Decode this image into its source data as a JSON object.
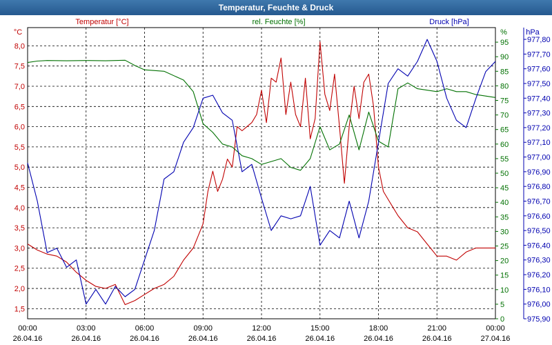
{
  "window": {
    "title": "Temperatur, Feuchte & Druck"
  },
  "colors": {
    "temperature": "#c00000",
    "humidity": "#007000",
    "pressure": "#0000b0",
    "grid": "#000000",
    "title_bg": "#2e65a0"
  },
  "chart_data": {
    "type": "line",
    "title": "Temperatur, Feuchte & Druck",
    "grid": true,
    "x_axis": {
      "range": [
        "26.04.16 00:00",
        "27.04.16 00:00"
      ],
      "ticks": [
        {
          "time": "00:00",
          "date": "26.04.16"
        },
        {
          "time": "03:00",
          "date": "26.04.16"
        },
        {
          "time": "06:00",
          "date": "26.04.16"
        },
        {
          "time": "09:00",
          "date": "26.04.16"
        },
        {
          "time": "12:00",
          "date": "26.04.16"
        },
        {
          "time": "15:00",
          "date": "26.04.16"
        },
        {
          "time": "18:00",
          "date": "26.04.16"
        },
        {
          "time": "21:00",
          "date": "26.04.16"
        },
        {
          "time": "00:00",
          "date": "27.04.16"
        }
      ]
    },
    "axes": {
      "left": {
        "unit": "°C",
        "range": [
          1.25,
          8.45
        ],
        "ticks": [
          "1,5",
          "2,0",
          "2,5",
          "3,0",
          "3,5",
          "4,0",
          "4,5",
          "5,0",
          "5,5",
          "6,0",
          "6,5",
          "7,0",
          "7,5",
          "8,0"
        ]
      },
      "middle": {
        "unit": "%",
        "range": [
          0,
          100
        ],
        "ticks": [
          "0",
          "5",
          "10",
          "15",
          "20",
          "25",
          "30",
          "35",
          "40",
          "45",
          "50",
          "55",
          "60",
          "65",
          "70",
          "75",
          "80",
          "85",
          "90",
          "95"
        ]
      },
      "right": {
        "unit": "hPa",
        "range": [
          975.9,
          977.88
        ],
        "ticks": [
          "975,90",
          "976,00",
          "976,10",
          "976,20",
          "976,30",
          "976,40",
          "976,50",
          "976,60",
          "976,70",
          "976,80",
          "976,90",
          "977,00",
          "977,10",
          "977,20",
          "977,30",
          "977,40",
          "977,50",
          "977,60",
          "977,70",
          "977,80"
        ]
      }
    },
    "series": [
      {
        "name": "Temperatur [°C]",
        "axis": "left",
        "color": "#c00000",
        "x_hours": [
          0,
          0.5,
          1,
          1.5,
          2,
          2.5,
          3,
          3.5,
          4,
          4.5,
          5,
          5.5,
          6,
          6.5,
          7,
          7.5,
          8,
          8.5,
          9,
          9.25,
          9.5,
          9.75,
          10,
          10.25,
          10.5,
          10.75,
          11,
          11.25,
          11.5,
          11.75,
          12,
          12.25,
          12.5,
          12.75,
          13,
          13.25,
          13.5,
          13.75,
          14,
          14.25,
          14.5,
          14.75,
          15,
          15.25,
          15.5,
          15.75,
          16,
          16.25,
          16.5,
          16.75,
          17,
          17.25,
          17.5,
          17.75,
          18,
          18.25,
          18.5,
          18.75,
          19,
          19.5,
          20,
          20.5,
          21,
          21.5,
          22,
          22.5,
          23,
          23.5,
          24
        ],
        "values": [
          3.1,
          2.95,
          2.85,
          2.8,
          2.65,
          2.4,
          2.2,
          2.05,
          2.0,
          2.1,
          1.6,
          1.7,
          1.85,
          2.0,
          2.1,
          2.3,
          2.7,
          3.0,
          3.6,
          4.4,
          4.9,
          4.4,
          4.7,
          5.2,
          5.0,
          6.0,
          5.9,
          6.0,
          6.1,
          6.3,
          6.9,
          6.1,
          7.2,
          7.1,
          7.7,
          6.3,
          7.1,
          6.3,
          6.0,
          7.2,
          5.7,
          6.2,
          8.1,
          6.8,
          6.4,
          7.3,
          6.0,
          4.6,
          6.0,
          7.0,
          6.2,
          7.1,
          7.3,
          6.5,
          5.0,
          4.4,
          4.2,
          4.0,
          3.8,
          3.5,
          3.4,
          3.1,
          2.8,
          2.8,
          2.7,
          2.9,
          3.0,
          3.0,
          3.0
        ]
      },
      {
        "name": "rel. Feuchte [%]",
        "axis": "middle",
        "color": "#007000",
        "x_hours": [
          0,
          0.5,
          1,
          2,
          3,
          4,
          5,
          5.5,
          6,
          7,
          8,
          8.5,
          9,
          9.5,
          10,
          10.5,
          11,
          11.5,
          12,
          12.5,
          13,
          13.5,
          14,
          14.5,
          15,
          15.5,
          16,
          16.5,
          17,
          17.5,
          18,
          18.5,
          19,
          19.5,
          20,
          21,
          21.5,
          22,
          22.5,
          23,
          24
        ],
        "values": [
          88,
          88.5,
          88.7,
          88.6,
          88.7,
          88.6,
          88.8,
          87,
          85.5,
          85,
          82,
          78,
          67,
          64,
          60,
          59,
          56,
          55,
          53,
          54,
          55,
          52,
          51,
          55,
          66,
          58,
          60,
          70,
          58,
          71,
          61,
          59,
          79,
          81,
          79,
          78,
          79,
          78,
          78,
          77,
          76
        ]
      },
      {
        "name": "Druck [hPa]",
        "axis": "right",
        "color": "#0000b0",
        "x_hours": [
          0,
          0.5,
          1,
          1.5,
          2,
          2.5,
          3,
          3.5,
          4,
          4.5,
          5,
          5.5,
          6,
          6.5,
          7,
          7.5,
          8,
          8.5,
          9,
          9.5,
          10,
          10.5,
          11,
          11.5,
          12,
          12.5,
          13,
          13.5,
          14,
          14.5,
          15,
          15.5,
          16,
          16.5,
          17,
          17.5,
          18,
          18.5,
          19,
          19.5,
          20,
          20.5,
          21,
          21.5,
          22,
          22.5,
          23,
          23.5,
          24
        ],
        "values": [
          976.96,
          976.7,
          976.35,
          976.38,
          976.25,
          976.3,
          976.0,
          976.1,
          976.0,
          976.12,
          976.05,
          976.1,
          976.3,
          976.5,
          976.85,
          976.9,
          977.1,
          977.2,
          977.4,
          977.42,
          977.3,
          977.25,
          976.9,
          976.95,
          976.72,
          976.5,
          976.6,
          976.58,
          976.6,
          976.8,
          976.4,
          976.5,
          976.45,
          976.7,
          976.45,
          976.7,
          977.1,
          977.5,
          977.6,
          977.55,
          977.65,
          977.8,
          977.65,
          977.4,
          977.25,
          977.2,
          977.4,
          977.58,
          977.65
        ]
      }
    ]
  }
}
